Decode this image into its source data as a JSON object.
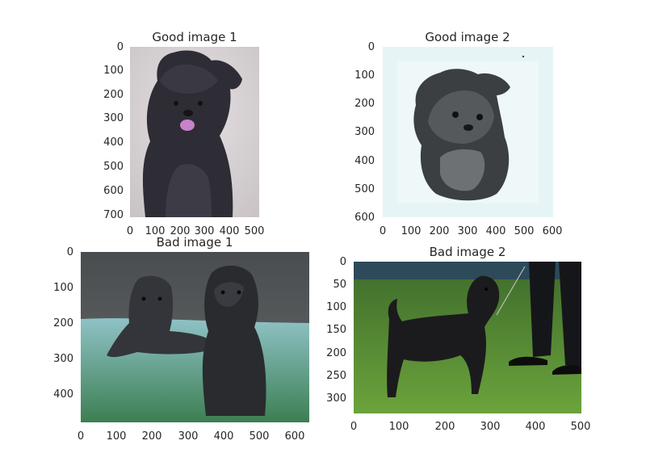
{
  "chart_data": [
    {
      "type": "image",
      "title": "Good image 1",
      "image_description": "photo of a fluffy black Affenpinscher dog sitting, tongue out, on a light gray background",
      "xlim": [
        0,
        520
      ],
      "ylim": [
        710,
        0
      ],
      "x_ticks": [
        0,
        100,
        200,
        300,
        400,
        500
      ],
      "y_ticks": [
        0,
        100,
        200,
        300,
        400,
        500,
        600,
        700
      ],
      "background_color": "#d9d4d6"
    },
    {
      "type": "image",
      "title": "Good image 2",
      "image_description": "pencil-style drawing of an Affenpinscher head on a pale blue background",
      "xlim": [
        0,
        600
      ],
      "ylim": [
        610,
        0
      ],
      "x_ticks": [
        0,
        100,
        200,
        300,
        400,
        500,
        600
      ],
      "y_ticks": [
        0,
        100,
        200,
        300,
        400,
        500,
        600
      ],
      "background_color": "#e6f4f6"
    },
    {
      "type": "image",
      "title": "Bad image 1",
      "image_description": "photo of two black Affenpinschers outdoors on grass, one lying down and one sitting",
      "xlim": [
        0,
        640
      ],
      "ylim": [
        480,
        0
      ],
      "x_ticks": [
        0,
        100,
        200,
        300,
        400,
        500,
        600
      ],
      "y_ticks": [
        0,
        100,
        200,
        300,
        400
      ],
      "background_color": "#5b8f8e"
    },
    {
      "type": "image",
      "title": "Bad image 2",
      "image_description": "photo of a black Affenpinscher standing on green show carpet next to a handler's legs",
      "xlim": [
        0,
        500
      ],
      "ylim": [
        335,
        0
      ],
      "x_ticks": [
        0,
        100,
        200,
        300,
        400,
        500
      ],
      "y_ticks": [
        0,
        50,
        100,
        150,
        200,
        250,
        300
      ],
      "background_color": "#5a8a34"
    }
  ]
}
